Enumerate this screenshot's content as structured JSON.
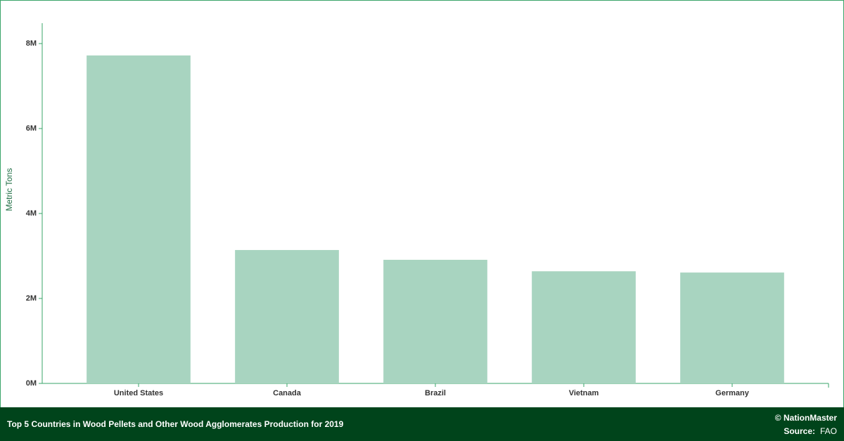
{
  "chart_data": {
    "type": "bar",
    "title": "Top 5 Countries in Wood Pellets and Other Wood Agglomerates Production for 2019",
    "y_label": "Metric Tons",
    "credit": "© NationMaster",
    "source_label": "Source:",
    "source": "FAO",
    "categories": [
      "United States",
      "Canada",
      "Brazil",
      "Vietnam",
      "Germany"
    ],
    "values": [
      7720000,
      3140000,
      2910000,
      2640000,
      2610000
    ],
    "color": "#a8d4c0",
    "ylim": [
      0,
      8480000
    ],
    "yticks": [
      {
        "value": 0,
        "label": "0M"
      },
      {
        "value": 2000000,
        "label": "2M"
      },
      {
        "value": 4000000,
        "label": "4M"
      },
      {
        "value": 6000000,
        "label": "6M"
      },
      {
        "value": 8000000,
        "label": "8M"
      }
    ],
    "grid": false
  }
}
